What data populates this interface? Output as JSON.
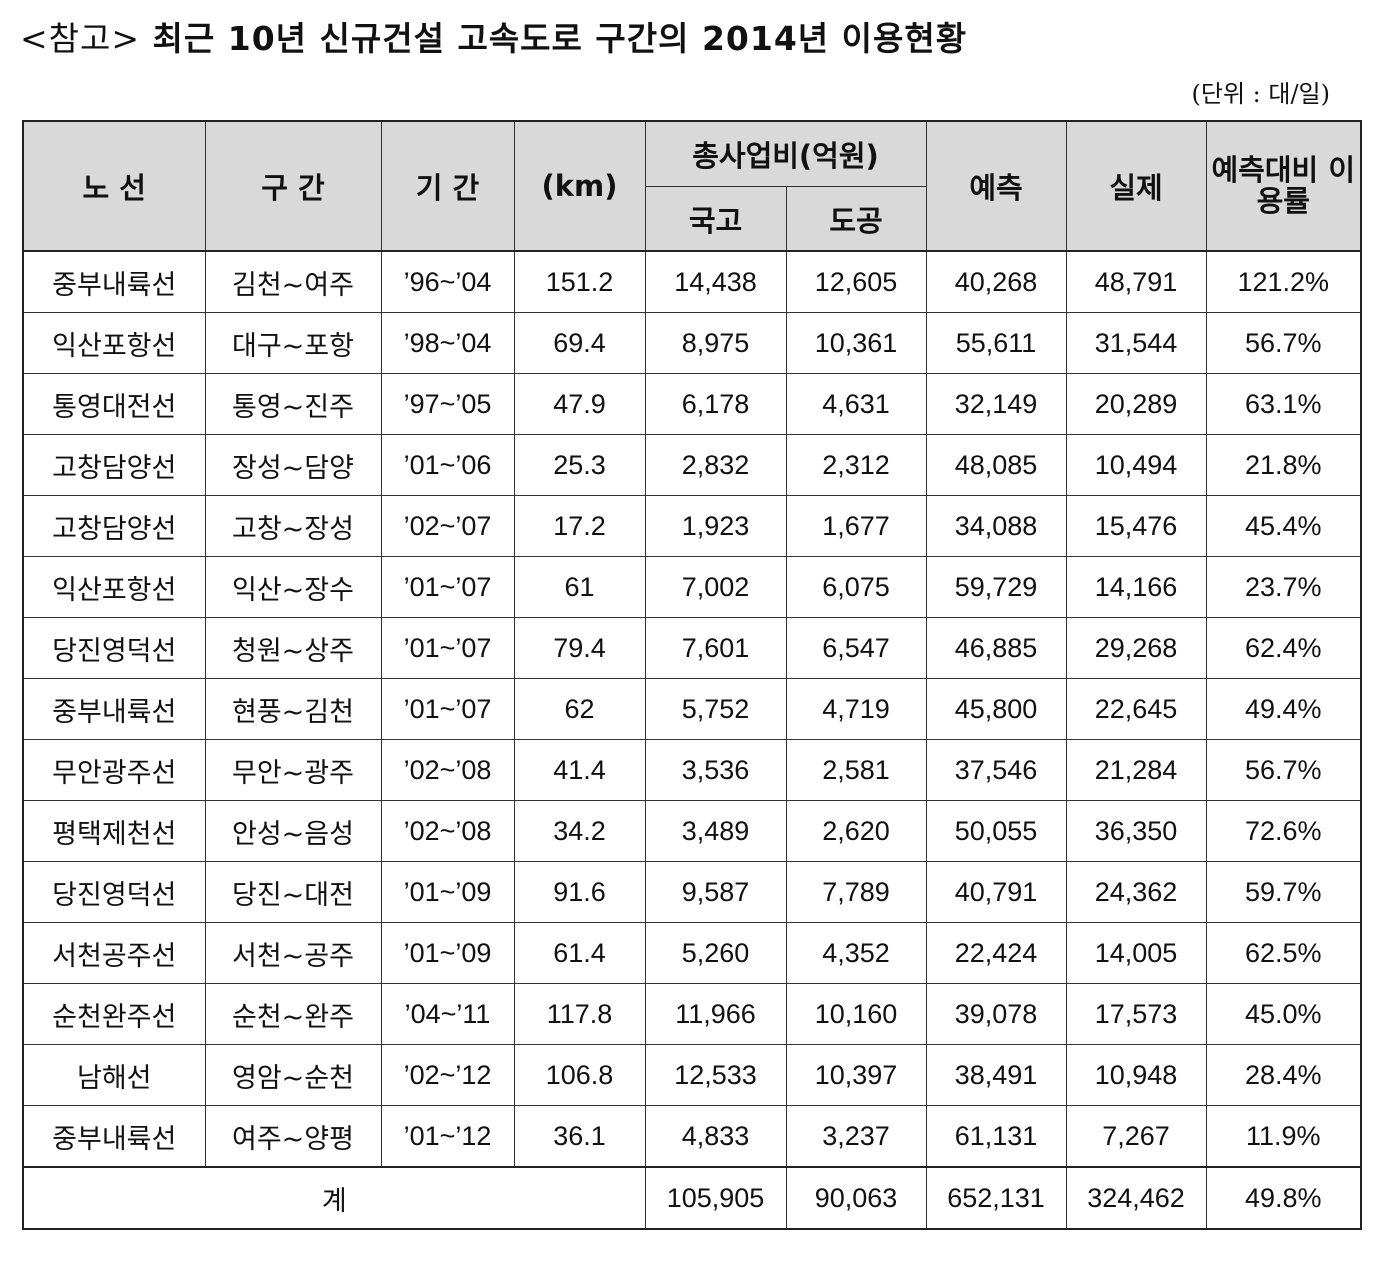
{
  "title": {
    "prefix": "<참고>",
    "text": "최근 10년 신규건설 고속도로 구간의 2014년 이용현황"
  },
  "unit": "(단위 : 대/일)",
  "table": {
    "headers": {
      "route": "노 선",
      "section": "구 간",
      "period": "기 간",
      "length": "(km)",
      "cost_group": "총사업비(억원)",
      "cost_national": "국고",
      "cost_corp": "도공",
      "forecast": "예측",
      "actual": "실제",
      "ratio": "예측대비 이용률"
    },
    "rows": [
      [
        "중부내륙선",
        "김천~여주",
        "’96~’04",
        "151.2",
        "14,438",
        "12,605",
        "40,268",
        "48,791",
        "121.2%"
      ],
      [
        "익산포항선",
        "대구~포항",
        "’98~’04",
        "69.4",
        "8,975",
        "10,361",
        "55,611",
        "31,544",
        "56.7%"
      ],
      [
        "통영대전선",
        "통영~진주",
        "’97~’05",
        "47.9",
        "6,178",
        "4,631",
        "32,149",
        "20,289",
        "63.1%"
      ],
      [
        "고창담양선",
        "장성~담양",
        "’01~’06",
        "25.3",
        "2,832",
        "2,312",
        "48,085",
        "10,494",
        "21.8%"
      ],
      [
        "고창담양선",
        "고창~장성",
        "’02~’07",
        "17.2",
        "1,923",
        "1,677",
        "34,088",
        "15,476",
        "45.4%"
      ],
      [
        "익산포항선",
        "익산~장수",
        "’01~’07",
        "61",
        "7,002",
        "6,075",
        "59,729",
        "14,166",
        "23.7%"
      ],
      [
        "당진영덕선",
        "청원~상주",
        "’01~’07",
        "79.4",
        "7,601",
        "6,547",
        "46,885",
        "29,268",
        "62.4%"
      ],
      [
        "중부내륙선",
        "현풍~김천",
        "’01~’07",
        "62",
        "5,752",
        "4,719",
        "45,800",
        "22,645",
        "49.4%"
      ],
      [
        "무안광주선",
        "무안~광주",
        "’02~’08",
        "41.4",
        "3,536",
        "2,581",
        "37,546",
        "21,284",
        "56.7%"
      ],
      [
        "평택제천선",
        "안성~음성",
        "’02~’08",
        "34.2",
        "3,489",
        "2,620",
        "50,055",
        "36,350",
        "72.6%"
      ],
      [
        "당진영덕선",
        "당진~대전",
        "’01~’09",
        "91.6",
        "9,587",
        "7,789",
        "40,791",
        "24,362",
        "59.7%"
      ],
      [
        "서천공주선",
        "서천~공주",
        "’01~’09",
        "61.4",
        "5,260",
        "4,352",
        "22,424",
        "14,005",
        "62.5%"
      ],
      [
        "순천완주선",
        "순천~완주",
        "’04~’11",
        "117.8",
        "11,966",
        "10,160",
        "39,078",
        "17,573",
        "45.0%"
      ],
      [
        "남해선",
        "영암~순천",
        "’02~’12",
        "106.8",
        "12,533",
        "10,397",
        "38,491",
        "10,948",
        "28.4%"
      ],
      [
        "중부내륙선",
        "여주~양평",
        "’01~’12",
        "36.1",
        "4,833",
        "3,237",
        "61,131",
        "7,267",
        "11.9%"
      ]
    ],
    "total": {
      "label": "계",
      "cost_national": "105,905",
      "cost_corp": "90,063",
      "forecast": "652,131",
      "actual": "324,462",
      "ratio": "49.8%"
    }
  }
}
